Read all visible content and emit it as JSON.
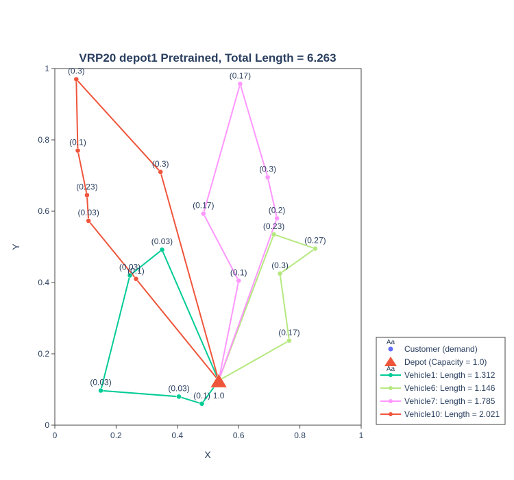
{
  "chart_data": {
    "type": "scatter",
    "title": "VRP20 depot1 Pretrained, Total Length = 6.263",
    "xlabel": "X",
    "ylabel": "Y",
    "xlim": [
      0,
      1
    ],
    "ylim": [
      0,
      1
    ],
    "xticks": [
      "0",
      "0.2",
      "0.4",
      "0.6",
      "0.8",
      "1"
    ],
    "yticks": [
      "0",
      "0.2",
      "0.4",
      "0.6",
      "0.8",
      "1"
    ],
    "grid": false,
    "legend_position": "bottom-right",
    "depot": {
      "x": 0.535,
      "y": 0.125,
      "label": "1.0",
      "color": "#ef553b"
    },
    "customers": [
      {
        "x": 0.07,
        "y": 0.97,
        "label": "(0.3)"
      },
      {
        "x": 0.075,
        "y": 0.77,
        "label": "(0.1)"
      },
      {
        "x": 0.105,
        "y": 0.645,
        "label": "(0.23)"
      },
      {
        "x": 0.11,
        "y": 0.573,
        "label": "(0.03)"
      },
      {
        "x": 0.345,
        "y": 0.71,
        "label": "(0.3)"
      },
      {
        "x": 0.605,
        "y": 0.957,
        "label": "(0.17)"
      },
      {
        "x": 0.695,
        "y": 0.695,
        "label": "(0.3)"
      },
      {
        "x": 0.725,
        "y": 0.58,
        "label": "(0.2)"
      },
      {
        "x": 0.485,
        "y": 0.593,
        "label": "(0.17)"
      },
      {
        "x": 0.6,
        "y": 0.405,
        "label": "(0.1)"
      },
      {
        "x": 0.715,
        "y": 0.535,
        "label": "(0.23)"
      },
      {
        "x": 0.85,
        "y": 0.495,
        "label": "(0.27)"
      },
      {
        "x": 0.735,
        "y": 0.425,
        "label": "(0.3)"
      },
      {
        "x": 0.765,
        "y": 0.237,
        "label": "(0.17)"
      },
      {
        "x": 0.35,
        "y": 0.492,
        "label": "(0.03)"
      },
      {
        "x": 0.245,
        "y": 0.42,
        "label": "(0.03)"
      },
      {
        "x": 0.265,
        "y": 0.41,
        "label": "(0.1)"
      },
      {
        "x": 0.15,
        "y": 0.097,
        "label": "(0.03)"
      },
      {
        "x": 0.405,
        "y": 0.08,
        "label": "(0.03)"
      },
      {
        "x": 0.48,
        "y": 0.06,
        "label": "(0.1)"
      }
    ],
    "series": [
      {
        "name": "Vehicle1: Length = 1.312",
        "color": "#00cc96",
        "x": [
          0.535,
          0.35,
          0.245,
          0.15,
          0.405,
          0.48,
          0.535
        ],
        "y": [
          0.125,
          0.492,
          0.42,
          0.097,
          0.08,
          0.06,
          0.125
        ]
      },
      {
        "name": "Vehicle6: Length = 1.146",
        "color": "#b6e880",
        "x": [
          0.535,
          0.715,
          0.85,
          0.735,
          0.765,
          0.535
        ],
        "y": [
          0.125,
          0.535,
          0.495,
          0.425,
          0.237,
          0.125
        ]
      },
      {
        "name": "Vehicle7: Length = 1.785",
        "color": "#ff97ff",
        "x": [
          0.535,
          0.725,
          0.695,
          0.605,
          0.485,
          0.6,
          0.535
        ],
        "y": [
          0.125,
          0.58,
          0.695,
          0.957,
          0.593,
          0.405,
          0.125
        ]
      },
      {
        "name": "Vehicle10: Length = 2.021",
        "color": "#ef553b",
        "x": [
          0.535,
          0.345,
          0.07,
          0.075,
          0.105,
          0.11,
          0.265,
          0.535
        ],
        "y": [
          0.125,
          0.71,
          0.97,
          0.77,
          0.645,
          0.573,
          0.41,
          0.125
        ]
      }
    ],
    "legend": {
      "customer_label": "Customer (demand)",
      "customer_color": "#636efa",
      "depot_label": "Depot (Capacity = 1.0)",
      "glyph_text": "Aa"
    }
  }
}
